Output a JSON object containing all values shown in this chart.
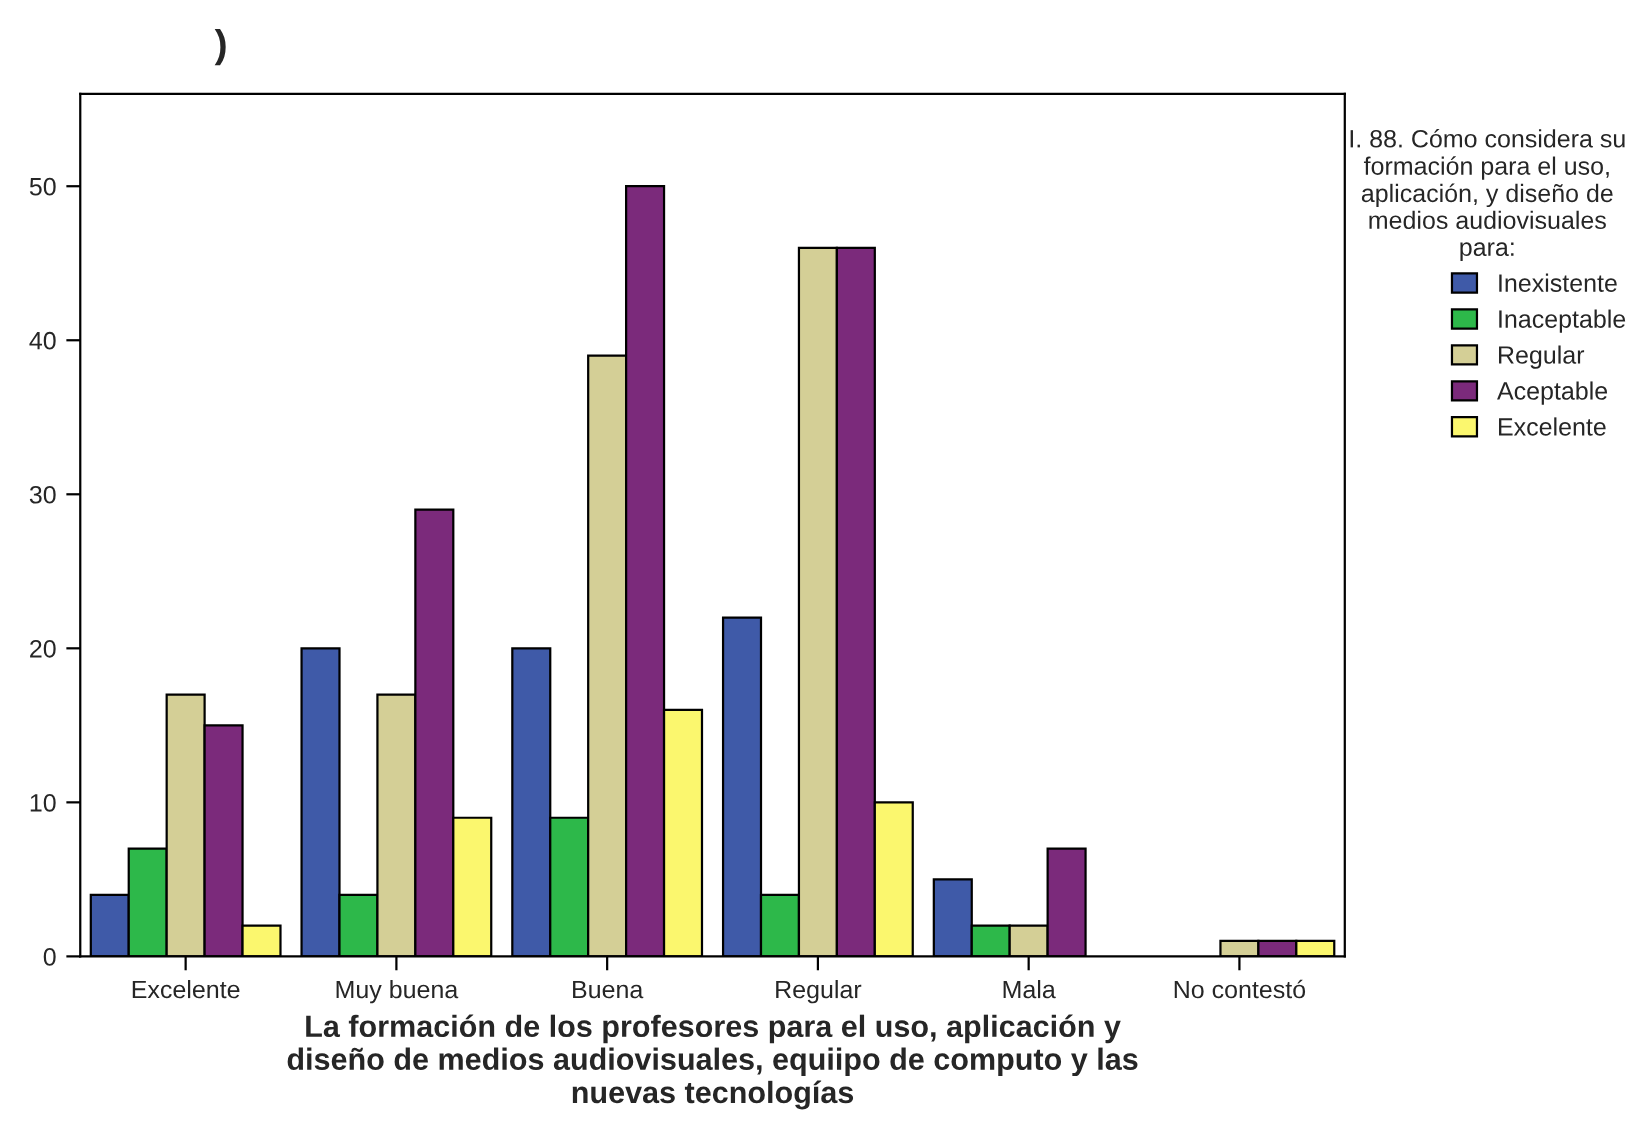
{
  "chart_data": {
    "type": "bar",
    "title": ")",
    "xlabel": "La formación de los profesores para el uso, aplicación y\ndiseño de medios audiovisuales, equiipo de computo y las\nnuevas tecnologías",
    "legend_title": "I. 88. Cómo considera su\nformación para el uso,\naplicación, y diseño de\nmedios audiovisuales\npara:",
    "categories": [
      "Excelente",
      "Muy buena",
      "Buena",
      "Regular",
      "Mala",
      "No contestó"
    ],
    "series": [
      {
        "name": "Inexistente",
        "color": "#3f5aa8",
        "values": [
          4,
          20,
          20,
          22,
          5,
          null
        ]
      },
      {
        "name": "Inaceptable",
        "color": "#2db84a",
        "values": [
          7,
          4,
          9,
          4,
          2,
          null
        ]
      },
      {
        "name": "Regular",
        "color": "#d4cf96",
        "values": [
          17,
          17,
          39,
          46,
          2,
          1
        ]
      },
      {
        "name": "Aceptable",
        "color": "#7b2a7b",
        "values": [
          15,
          29,
          50,
          46,
          7,
          1
        ]
      },
      {
        "name": "Excelente",
        "color": "#fbf76e",
        "values": [
          2,
          9,
          16,
          10,
          null,
          1
        ]
      }
    ],
    "ylim": [
      0,
      56
    ],
    "yticks": [
      0,
      10,
      20,
      30,
      40,
      50
    ],
    "grid": false,
    "legend": "top right"
  }
}
